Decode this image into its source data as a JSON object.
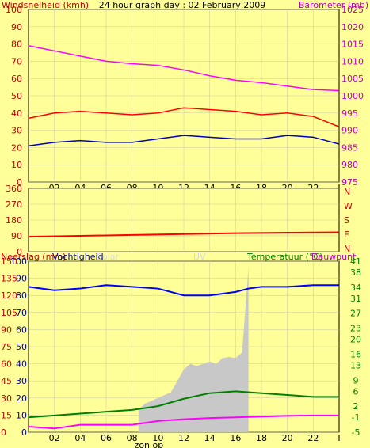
{
  "header": {
    "left_label": "Windsnelheid (kmh)",
    "title": "24 hour graph day : 02 February 2009",
    "right_label": "Barometer (mb)"
  },
  "colors": {
    "background": "#ffff99",
    "plot_bg": "#ffff99",
    "grid": "#c8c8a0",
    "wind": "#ff0000",
    "wind_dark": "#c00000",
    "barometer": "#ff00ff",
    "wind_gust": "#0000c0",
    "direction": "#ff0000",
    "humidity": "#0000ff",
    "temperature": "#008000",
    "dewpoint": "#ff00ff",
    "rain": "#c8c8c8",
    "axis_text_left": "#c00000",
    "axis_text_right": "#c000c0",
    "axis_text_green": "#008000"
  },
  "chart_data": [
    {
      "type": "line",
      "name": "wind-and-barometer",
      "x_ticks": [
        "02",
        "04",
        "06",
        "08",
        "10",
        "12",
        "14",
        "16",
        "18",
        "20",
        "22",
        "I"
      ],
      "sunrise_label": "zon op",
      "y_left": {
        "label": "Windsnelheid (kmh)",
        "ticks": [
          0,
          10,
          20,
          30,
          40,
          50,
          60,
          70,
          80,
          90,
          100
        ],
        "lim": [
          0,
          100
        ]
      },
      "y_right": {
        "label": "Barometer (mb)",
        "ticks": [
          975,
          980,
          985,
          990,
          995,
          1000,
          1005,
          1010,
          1015,
          1020,
          1025
        ],
        "lim": [
          975,
          1025
        ]
      },
      "series": [
        {
          "color": "#ff00ff",
          "axis": "right",
          "x_hours": [
            0,
            2,
            4,
            6,
            8,
            10,
            12,
            14,
            16,
            18,
            20,
            22,
            24
          ],
          "values": [
            1014.5,
            1013.0,
            1011.5,
            1010.0,
            1009.3,
            1008.8,
            1007.5,
            1005.8,
            1004.5,
            1003.8,
            1002.8,
            1001.8,
            1001.5
          ]
        },
        {
          "color": "#ff0000",
          "axis": "left",
          "x_hours": [
            0,
            2,
            4,
            6,
            8,
            10,
            12,
            14,
            16,
            18,
            20,
            22,
            24
          ],
          "values": [
            37,
            40,
            41,
            40,
            39,
            40,
            43,
            42,
            41,
            39,
            40,
            38,
            32
          ]
        },
        {
          "color": "#0000c0",
          "axis": "left",
          "x_hours": [
            0,
            2,
            4,
            6,
            8,
            10,
            12,
            14,
            16,
            18,
            20,
            22,
            24
          ],
          "values": [
            21,
            23,
            24,
            23,
            23,
            25,
            27,
            26,
            25,
            25,
            27,
            26,
            22
          ]
        }
      ]
    },
    {
      "type": "line",
      "name": "wind-direction",
      "y_left": {
        "ticks": [
          0,
          90,
          180,
          270,
          360
        ],
        "lim": [
          0,
          360
        ]
      },
      "y_right": {
        "labels": [
          "N",
          "W",
          "S",
          "E",
          "N"
        ]
      },
      "series": [
        {
          "color": "#ff0000",
          "x_hours": [
            0,
            4,
            8,
            12,
            16,
            20,
            24
          ],
          "values": [
            85,
            90,
            95,
            100,
            105,
            108,
            110
          ]
        }
      ]
    },
    {
      "type": "area",
      "name": "rain-humidity-temperature",
      "header": {
        "rain": "Neerslag (mm)",
        "humidity": "Vochtigheid",
        "solar": "Solar",
        "uv": "UV",
        "temperature": "Temperatuur (°C)",
        "dewpoint": "Dauwpunt"
      },
      "x_ticks": [
        "02",
        "04",
        "06",
        "08",
        "10",
        "12",
        "14",
        "16",
        "18",
        "20",
        "22",
        "I"
      ],
      "sunrise_label": "zon op",
      "y_left_rain": {
        "ticks": [
          0,
          15,
          30,
          45,
          60,
          75,
          90,
          105,
          120,
          135,
          150
        ],
        "lim": [
          0,
          150
        ]
      },
      "y_left_humidity": {
        "ticks": [
          0,
          10,
          20,
          30,
          40,
          50,
          60,
          70,
          80,
          90,
          100
        ],
        "lim": [
          0,
          100
        ]
      },
      "y_right": {
        "ticks": [
          -5,
          -1,
          2,
          6,
          9,
          13,
          16,
          20,
          23,
          27,
          31,
          34,
          38,
          41
        ],
        "lim": [
          -5,
          41
        ]
      },
      "series": [
        {
          "color": "#0000ff",
          "axis": "humidity",
          "x_hours": [
            0,
            2,
            4,
            6,
            8,
            10,
            12,
            14,
            16,
            17,
            18,
            20,
            22,
            24
          ],
          "values": [
            85,
            83,
            84,
            86,
            85,
            84,
            80,
            80,
            82,
            84,
            85,
            85,
            86,
            86
          ]
        },
        {
          "color": "#008000",
          "axis": "right",
          "x_hours": [
            0,
            4,
            8,
            10,
            12,
            14,
            16,
            18,
            20,
            22,
            24
          ],
          "values": [
            -1,
            0,
            1,
            2,
            4,
            5.5,
            6,
            5.5,
            5,
            4.5,
            4.5
          ]
        },
        {
          "color": "#ff00ff",
          "axis": "right",
          "x_hours": [
            0,
            2,
            4,
            6,
            8,
            10,
            12,
            14,
            16,
            18,
            20,
            22,
            24
          ],
          "values": [
            -3.5,
            -4,
            -3,
            -3,
            -3,
            -2,
            -1.5,
            -1.2,
            -1,
            -0.8,
            -0.6,
            -0.5,
            -0.5
          ]
        },
        {
          "color": "#c8c8c8",
          "axis": "rain",
          "x_hours": [
            8.5,
            9,
            10,
            11,
            11.5,
            12,
            12.5,
            13,
            14,
            14.5,
            15,
            15.5,
            16,
            16.5,
            17
          ],
          "values": [
            20,
            25,
            30,
            35,
            45,
            55,
            60,
            58,
            62,
            60,
            65,
            66,
            65,
            70,
            145
          ]
        }
      ]
    }
  ]
}
